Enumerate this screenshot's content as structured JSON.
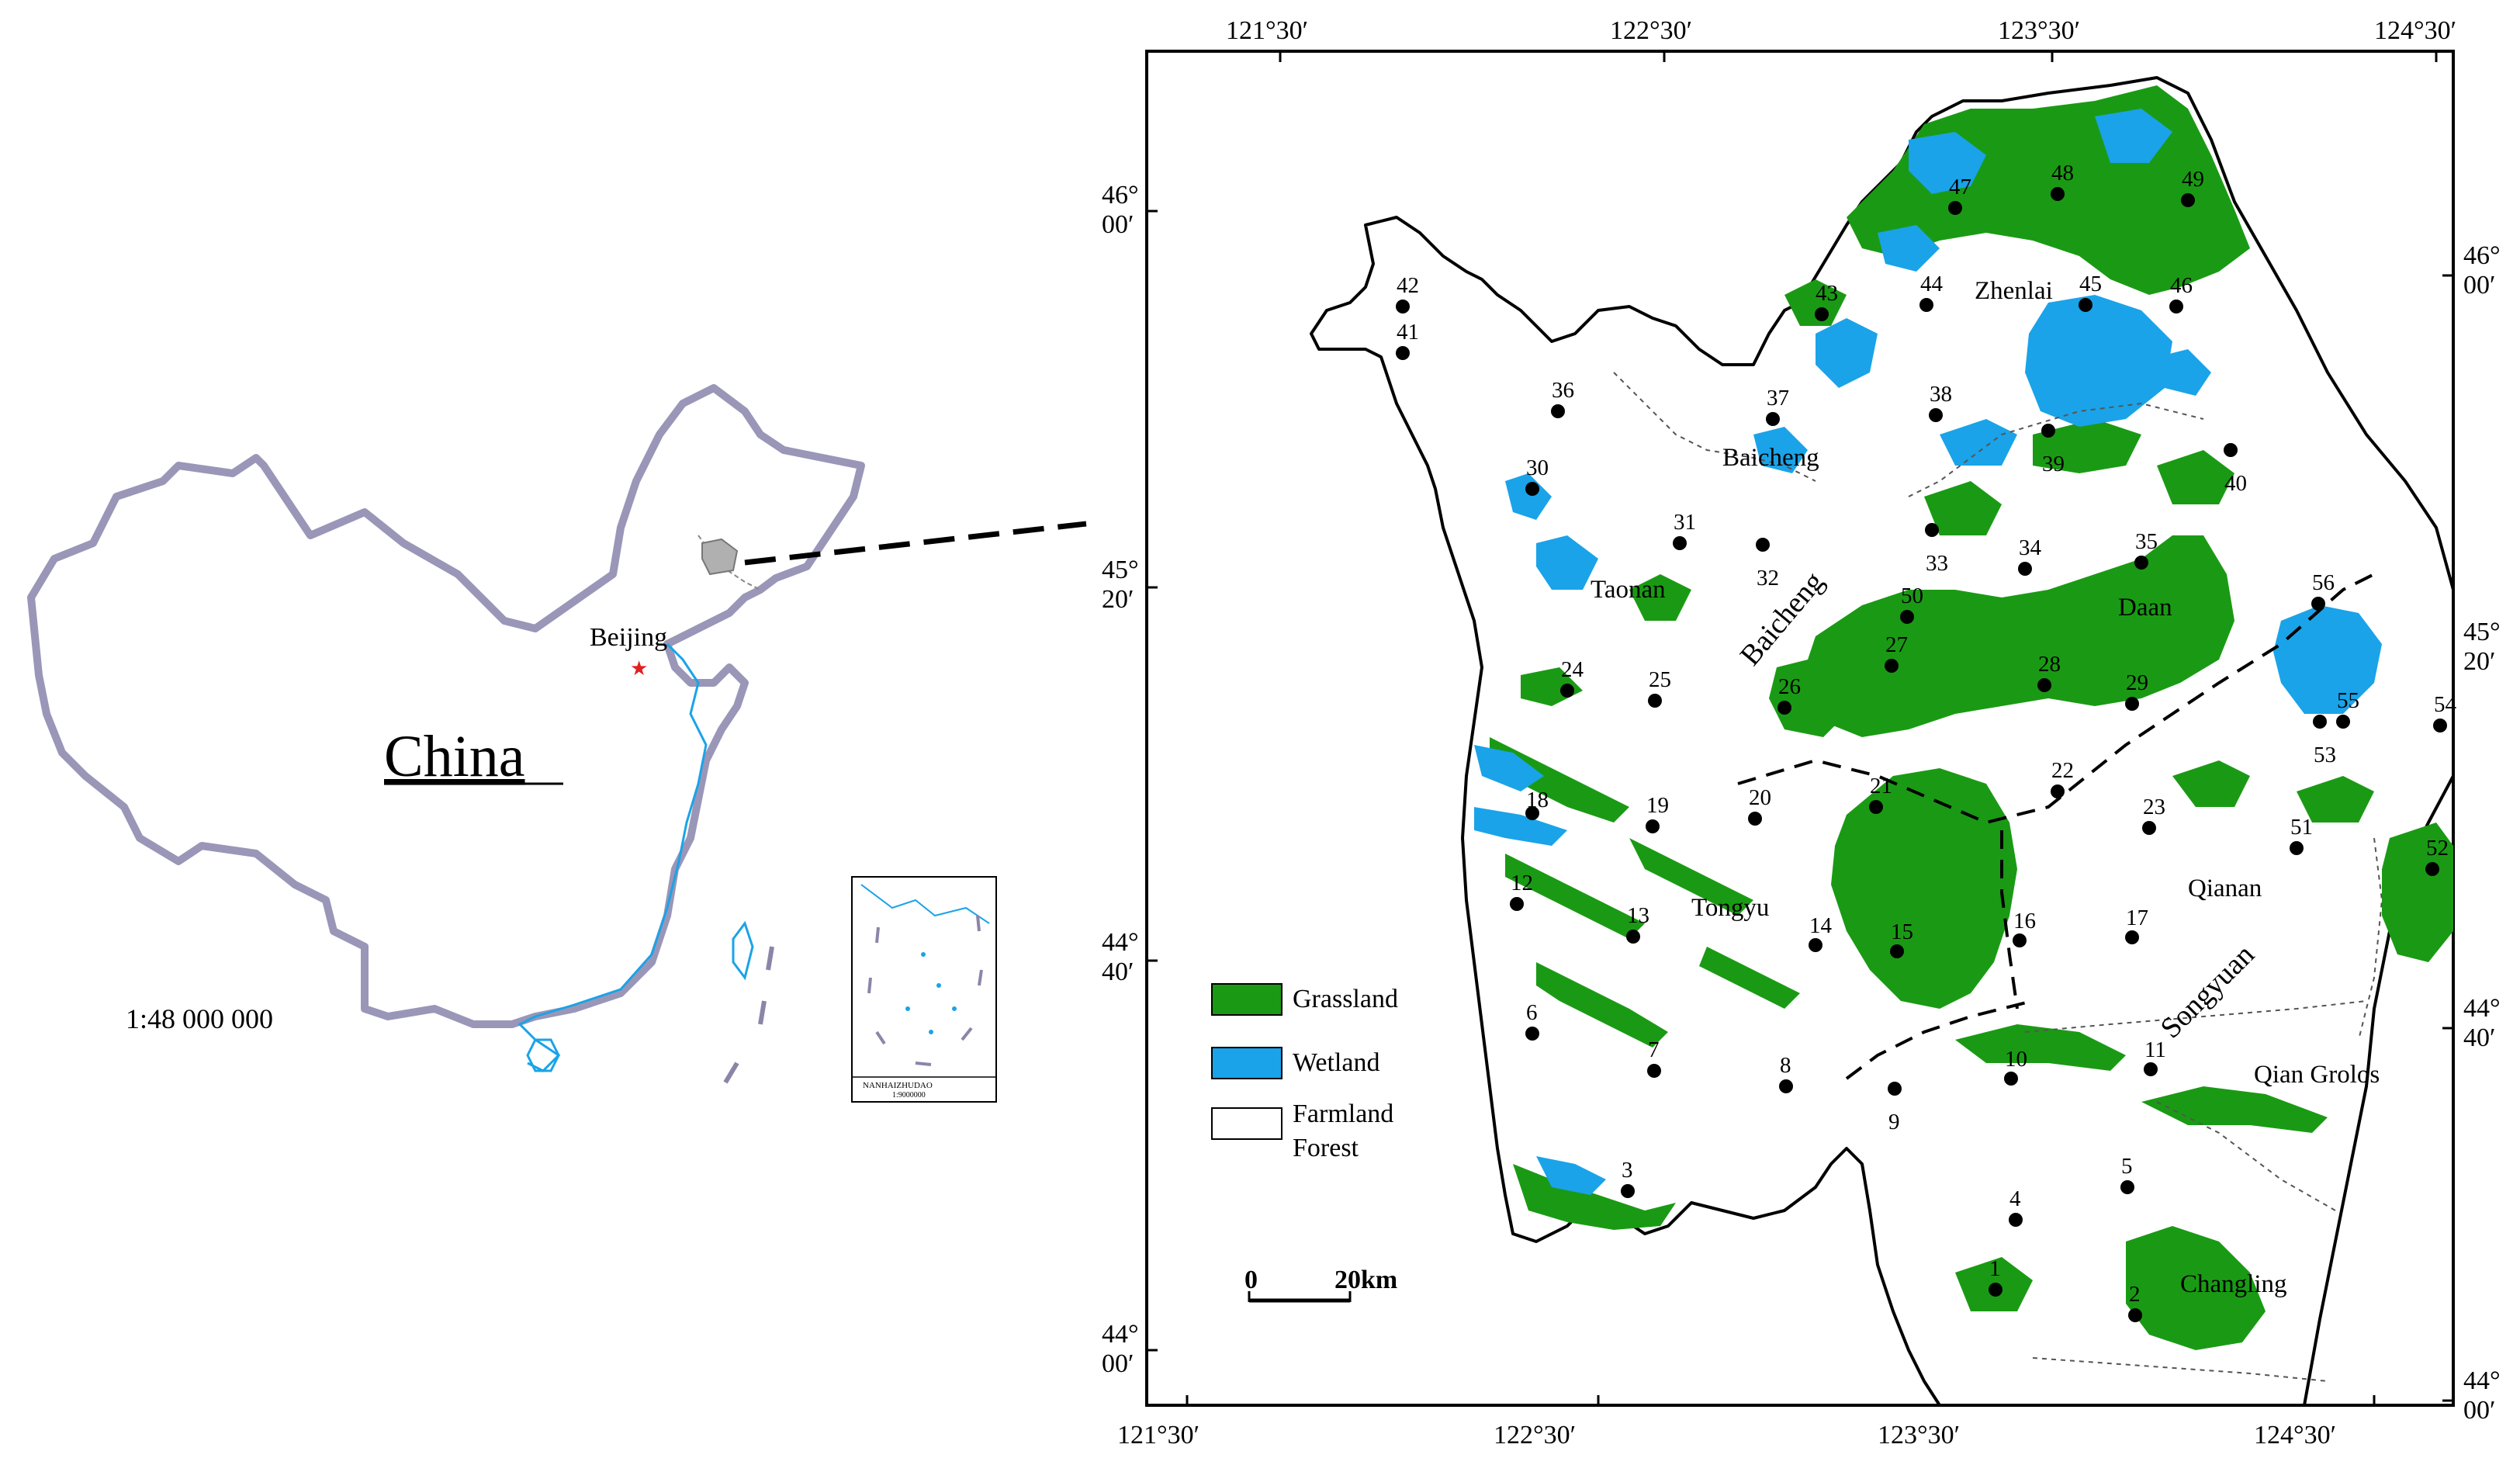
{
  "overview": {
    "country_label": "China",
    "capital_label": "Beijing",
    "scale": "1:48 000 000",
    "inset_caption_line1": "NANHAIZHUDAO",
    "inset_caption_line2": "1:9000000"
  },
  "map": {
    "colors": {
      "grassland": "#1a9a14",
      "wetland": "#1aa3e8",
      "farmland_forest": "#ffffff",
      "frame": "#000000",
      "china_border": "#9a96b8",
      "coast": "#1aa3e8"
    },
    "lon_labels_top": [
      "121°30′",
      "122°30′",
      "123°30′",
      "124°30′"
    ],
    "lon_labels_bottom": [
      "121°30′",
      "122°30′",
      "123°30′",
      "124°30′"
    ],
    "lat_labels_left": [
      {
        "deg": "46°",
        "min": "00′"
      },
      {
        "deg": "45°",
        "min": "20′"
      },
      {
        "deg": "44°",
        "min": "40′"
      },
      {
        "deg": "44°",
        "min": "00′"
      }
    ],
    "lat_labels_right": [
      {
        "deg": "46°",
        "min": "00′"
      },
      {
        "deg": "45°",
        "min": "20′"
      },
      {
        "deg": "44°",
        "min": "40′"
      },
      {
        "deg": "44°",
        "min": "00′"
      }
    ],
    "places": {
      "zhenlai": "Zhenlai",
      "baicheng_city": "Baicheng",
      "baicheng_region": "Baicheng",
      "taonan": "Taonan",
      "daan": "Daan",
      "tongyu": "Tongyu",
      "qianan": "Qianan",
      "songyuan": "Songyuan",
      "qiangorlos": "Qian Grolos",
      "changling": "Changling"
    },
    "scalebar": {
      "start": "0",
      "end": "20km"
    },
    "legend": [
      {
        "key": "grassland",
        "label": "Grassland"
      },
      {
        "key": "wetland",
        "label": "Wetland"
      },
      {
        "key": "farmland",
        "label": "Farmland",
        "label2": "Forest"
      }
    ],
    "sample_points": [
      "1",
      "2",
      "3",
      "4",
      "5",
      "6",
      "7",
      "8",
      "9",
      "10",
      "11",
      "12",
      "13",
      "14",
      "15",
      "16",
      "17",
      "18",
      "19",
      "20",
      "21",
      "22",
      "23",
      "24",
      "25",
      "26",
      "27",
      "28",
      "29",
      "30",
      "31",
      "32",
      "33",
      "34",
      "35",
      "36",
      "37",
      "38",
      "39",
      "40",
      "41",
      "42",
      "43",
      "44",
      "45",
      "46",
      "47",
      "48",
      "49",
      "50",
      "51",
      "52",
      "53",
      "54",
      "55",
      "56"
    ]
  }
}
